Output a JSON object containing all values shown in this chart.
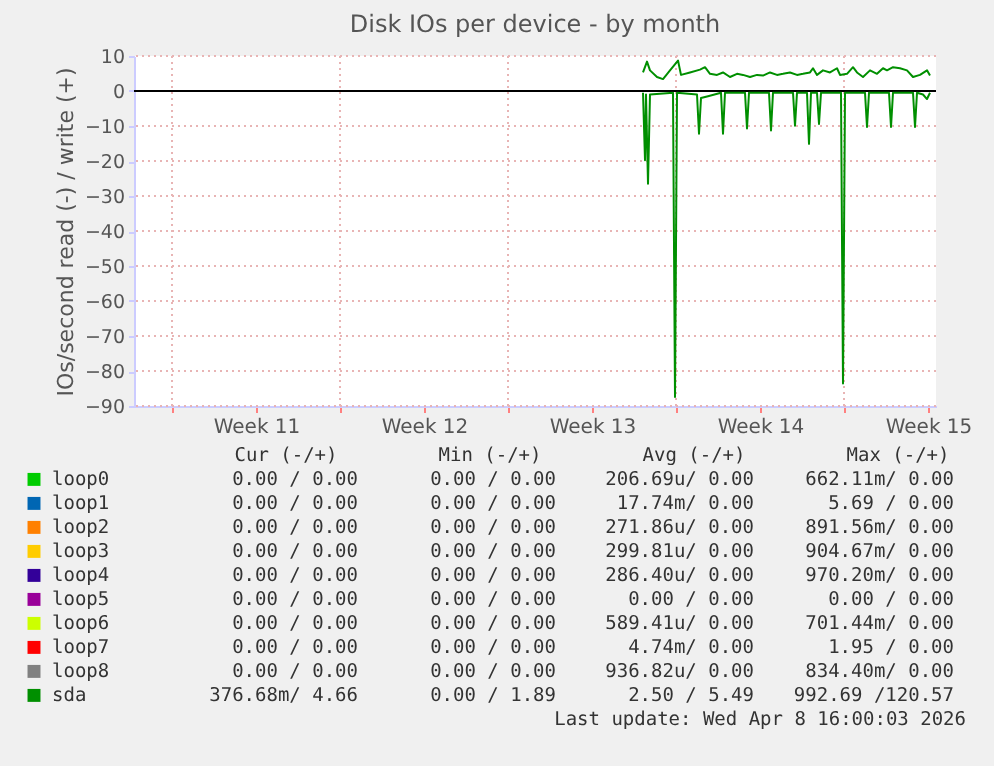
{
  "chart_data": {
    "type": "line",
    "title": "Disk IOs per device - by month",
    "ylabel": "IOs/second read (-) / write (+)",
    "xlim": [
      "2026-03-07T10:00",
      "2026-04-09T20:00"
    ],
    "xticks": [
      {
        "value": "2026-03-09T00:00",
        "label": null
      },
      {
        "value": "2026-03-12T12:00",
        "label": "Week 11"
      },
      {
        "value": "2026-03-16T00:00",
        "label": null
      },
      {
        "value": "2026-03-19T12:00",
        "label": "Week 12"
      },
      {
        "value": "2026-03-23T00:00",
        "label": null
      },
      {
        "value": "2026-03-26T12:00",
        "label": "Week 13"
      },
      {
        "value": "2026-03-30T00:00",
        "label": null
      },
      {
        "value": "2026-04-02T12:00",
        "label": "Week 14"
      },
      {
        "value": "2026-04-06T00:00",
        "label": null
      },
      {
        "value": "2026-04-09T12:00",
        "label": "Week 15"
      }
    ],
    "ylim": [
      -90,
      10
    ],
    "yticks": [
      -90,
      -80,
      -70,
      -60,
      -50,
      -40,
      -30,
      -20,
      -10,
      0,
      10
    ],
    "grid": true,
    "legend": "bottom",
    "line_style": "solid",
    "marker": "none",
    "ref_lines": [
      {
        "axis": "y",
        "value": 0,
        "label": null,
        "color": "#000000"
      }
    ],
    "series": [
      {
        "name": "loop0",
        "color": "#00cc00"
      },
      {
        "name": "loop1",
        "color": "#0066b3"
      },
      {
        "name": "loop2",
        "color": "#ff8000"
      },
      {
        "name": "loop3",
        "color": "#ffcc00"
      },
      {
        "name": "loop4",
        "color": "#330099"
      },
      {
        "name": "loop5",
        "color": "#990099"
      },
      {
        "name": "loop6",
        "color": "#ccff00"
      },
      {
        "name": "loop7",
        "color": "#ff0000"
      },
      {
        "name": "loop8",
        "color": "#808080"
      },
      {
        "name": "sda",
        "color": "#008f00",
        "x": [
          "2026-03-28T15:00",
          "2026-03-28T19:00",
          "2026-03-28T22:00",
          "2026-03-29T05:00",
          "2026-03-29T11:00",
          "2026-03-29T18:00",
          "2026-03-30T02:00",
          "2026-03-30T05:00",
          "2026-03-30T14:00",
          "2026-03-31T00:00",
          "2026-03-31T05:00",
          "2026-03-31T10:00",
          "2026-03-31T17:00",
          "2026-03-31T23:00",
          "2026-04-01T06:00",
          "2026-04-01T13:00",
          "2026-04-01T19:00",
          "2026-04-02T02:00",
          "2026-04-02T09:00",
          "2026-04-02T15:00",
          "2026-04-02T22:00",
          "2026-04-03T05:00",
          "2026-04-03T11:00",
          "2026-04-03T18:00",
          "2026-04-04T01:00",
          "2026-04-04T07:00",
          "2026-04-04T14:00",
          "2026-04-04T17:00",
          "2026-04-04T21:00",
          "2026-04-05T03:00",
          "2026-04-05T10:00",
          "2026-04-05T17:00",
          "2026-04-05T20:00",
          "2026-04-06T03:00",
          "2026-04-06T09:00",
          "2026-04-06T13:00",
          "2026-04-06T19:00",
          "2026-04-07T02:00",
          "2026-04-07T09:00",
          "2026-04-07T15:00",
          "2026-04-07T19:00",
          "2026-04-08T01:00",
          "2026-04-08T08:00",
          "2026-04-08T15:00",
          "2026-04-08T21:00",
          "2026-04-09T04:00",
          "2026-04-09T11:00",
          "2026-04-09T14:00"
        ],
        "values": [
          5.3,
          8.4,
          5.9,
          4.0,
          3.4,
          5.9,
          8.7,
          4.6,
          5.3,
          6.1,
          6.8,
          4.9,
          4.6,
          5.3,
          4.0,
          4.9,
          4.6,
          4.0,
          4.6,
          4.4,
          5.3,
          4.6,
          4.9,
          5.3,
          4.6,
          4.9,
          5.3,
          6.5,
          4.6,
          5.9,
          5.3,
          6.5,
          4.6,
          4.9,
          6.8,
          5.3,
          4.0,
          5.9,
          4.9,
          6.5,
          5.9,
          6.8,
          6.5,
          5.9,
          4.0,
          4.6,
          5.9,
          4.4
        ]
      },
      {
        "color": "#008f00",
        "x": [
          "2026-03-28T15:00",
          "2026-03-28T17:00",
          "2026-03-28T18:00",
          "2026-03-28T20:00",
          "2026-03-28T22:00",
          "2026-03-29T21:00",
          "2026-03-29T23:00",
          "2026-03-30T01:00",
          "2026-03-30T21:00",
          "2026-03-30T23:00",
          "2026-03-31T01:00",
          "2026-03-31T08:00",
          "2026-03-31T21:00",
          "2026-03-31T23:00",
          "2026-04-01T01:00",
          "2026-04-01T21:00",
          "2026-04-01T23:00",
          "2026-04-02T01:00",
          "2026-04-02T21:00",
          "2026-04-02T23:00",
          "2026-04-03T01:00",
          "2026-04-03T21:00",
          "2026-04-03T23:00",
          "2026-04-04T01:00",
          "2026-04-04T11:00",
          "2026-04-04T13:00",
          "2026-04-04T15:00",
          "2026-04-04T21:00",
          "2026-04-04T23:00",
          "2026-04-05T01:00",
          "2026-04-05T21:00",
          "2026-04-05T23:00",
          "2026-04-06T01:00",
          "2026-04-06T21:00",
          "2026-04-06T23:00",
          "2026-04-07T01:00",
          "2026-04-07T21:00",
          "2026-04-07T23:00",
          "2026-04-08T01:00",
          "2026-04-08T21:00",
          "2026-04-08T23:00",
          "2026-04-09T01:00",
          "2026-04-09T07:00",
          "2026-04-09T11:00",
          "2026-04-09T14:00"
        ],
        "values": [
          -0.5,
          -19.8,
          -1,
          -26.5,
          -1,
          -0.5,
          -87.4,
          -0.5,
          -1,
          -12.2,
          -2,
          -1.5,
          -0.5,
          -12.2,
          -0.5,
          -0.5,
          -10.7,
          -0.5,
          -0.5,
          -11.3,
          -0.5,
          -0.5,
          -9.9,
          -0.5,
          -0.5,
          -15.1,
          -0.5,
          -0.5,
          -9.4,
          -0.5,
          -0.5,
          -83.6,
          -0.5,
          -0.5,
          -10.3,
          -0.5,
          -0.5,
          -10.3,
          -0.5,
          -0.5,
          -10.3,
          -0.5,
          -1,
          -2.3,
          -0.5
        ]
      }
    ],
    "annotations": [
      "Cur (-/+)",
      "Min (-/+)",
      "Avg (-/+)",
      "Max (-/+)",
      "0.00 /  0.00",
      "0.00 /  0.00",
      "206.69u/  0.00",
      "662.11m/  0.00",
      "0.00 /  0.00",
      "0.00 /  0.00",
      "17.74m/  0.00",
      "5.69 /  0.00",
      "0.00 /  0.00",
      "0.00 /  0.00",
      "271.86u/  0.00",
      "891.56m/  0.00",
      "0.00 /  0.00",
      "0.00 /  0.00",
      "299.81u/  0.00",
      "904.67m/  0.00",
      "0.00 /  0.00",
      "0.00 /  0.00",
      "286.40u/  0.00",
      "970.20m/  0.00",
      "0.00 /  0.00",
      "0.00 /  0.00",
      "0.00 /  0.00",
      "0.00 /  0.00",
      "0.00 /  0.00",
      "0.00 /  0.00",
      "589.41u/  0.00",
      "701.44m/  0.00",
      "0.00 /  0.00",
      "0.00 /  0.00",
      "4.74m/  0.00",
      "1.95 /  0.00",
      "0.00 /  0.00",
      "0.00 /  0.00",
      "936.82u/  0.00",
      "834.40m/  0.00",
      "376.68m/  4.66",
      "0.00 /  1.89",
      "2.50 /  5.49",
      "992.69 /120.57",
      "Last update: Wed Apr  8 16:00:03 2026"
    ]
  }
}
